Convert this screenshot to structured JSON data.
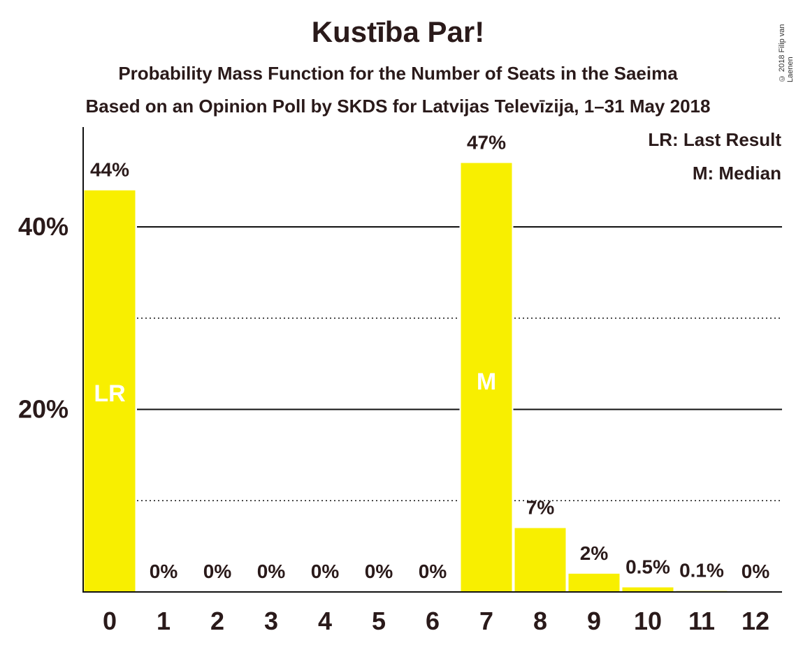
{
  "title": "Kustība Par!",
  "subtitle": "Probability Mass Function for the Number of Seats in the Saeima",
  "subtitle2": "Based on an Opinion Poll by SKDS for Latvijas Televīzija, 1–31 May 2018",
  "copyright": "© 2018 Filip van Laenen",
  "legend": {
    "last_result": "LR: Last Result",
    "median": "M: Median"
  },
  "colors": {
    "bar": "#f8ef00",
    "text": "#2a1a1a"
  },
  "chart_data": {
    "type": "bar",
    "categories": [
      "0",
      "1",
      "2",
      "3",
      "4",
      "5",
      "6",
      "7",
      "8",
      "9",
      "10",
      "11",
      "12"
    ],
    "values": [
      44,
      0,
      0,
      0,
      0,
      0,
      0,
      47,
      7,
      2,
      0.5,
      0.1,
      0
    ],
    "value_labels": [
      "44%",
      "0%",
      "0%",
      "0%",
      "0%",
      "0%",
      "0%",
      "47%",
      "7%",
      "2%",
      "0.5%",
      "0.1%",
      "0%"
    ],
    "bar_markers": {
      "0": "LR",
      "7": "M"
    },
    "ylim": [
      0,
      50
    ],
    "yticks": [
      {
        "value": 20,
        "label": "20%"
      },
      {
        "value": 40,
        "label": "40%"
      }
    ],
    "minor_gridlines": [
      10,
      30
    ],
    "grid": true,
    "legend_position": "top-right"
  }
}
